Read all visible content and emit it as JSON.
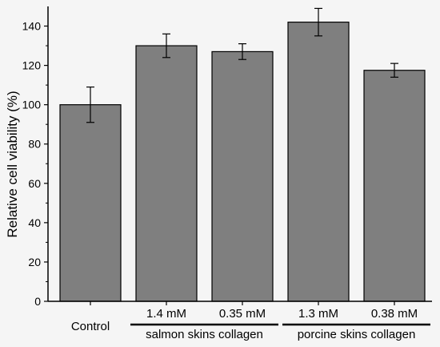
{
  "background": "#f5f5f5",
  "bar_color": "#7f7f7f",
  "chart_data": {
    "type": "bar",
    "ylabel": "Relative cell viability (%)",
    "ylim": [
      0,
      150
    ],
    "yticks": [
      0,
      20,
      40,
      60,
      80,
      100,
      120,
      140
    ],
    "categories": [
      "Control",
      "1.4 mM",
      "0.35 mM",
      "1.3 mM",
      "0.38 mM"
    ],
    "values": [
      100,
      130,
      127,
      142,
      117.5
    ],
    "errors": [
      9,
      6,
      4,
      7,
      3.5
    ],
    "groups": [
      {
        "label": "salmon skins collagen",
        "categories": [
          "1.4 mM",
          "0.35 mM"
        ]
      },
      {
        "label": "porcine skins collagen",
        "categories": [
          "1.3 mM",
          "0.38 mM"
        ]
      }
    ],
    "grid": false
  }
}
